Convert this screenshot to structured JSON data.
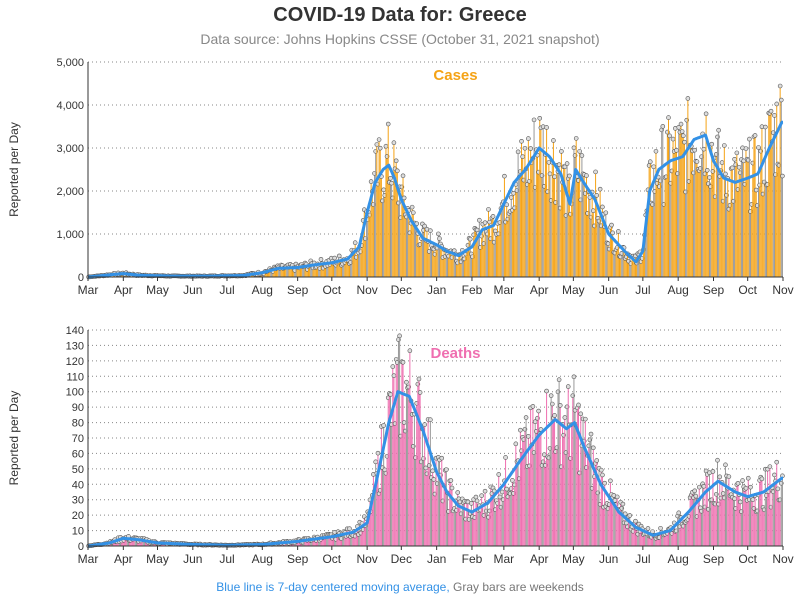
{
  "title": "COVID-19 Data for: Greece",
  "subtitle": "Data source: Johns Hopkins CSSE (October 31, 2021 snapshot)",
  "footer": {
    "blue_text": "Blue line is 7-day centered moving average,",
    "gray_text": "Gray bars are weekends"
  },
  "colors": {
    "cases_bar": "#f5a316",
    "deaths_bar": "#ef6fb0",
    "average_line": "#3391e6",
    "weekend_bar": "#999999"
  },
  "chart_data": [
    {
      "type": "bar",
      "title": "Cases",
      "ylabel": "Reported per Day",
      "ylim": [
        0,
        5000
      ],
      "yticks": [
        "0",
        "1,000",
        "2,000",
        "3,000",
        "4,000",
        "5,000"
      ],
      "ytick_values": [
        0,
        1000,
        2000,
        3000,
        4000,
        5000
      ],
      "x_range": [
        "2020-03-01",
        "2021-10-31"
      ],
      "xticks": [
        "Mar",
        "Apr",
        "May",
        "Jun",
        "Jul",
        "Aug",
        "Sep",
        "Oct",
        "Nov",
        "Dec",
        "Jan",
        "Feb",
        "Mar",
        "Apr",
        "May",
        "Jun",
        "Jul",
        "Aug",
        "Sep",
        "Oct",
        "Nov"
      ],
      "moving_average_anchors": [
        [
          "2020-03-01",
          0
        ],
        [
          "2020-03-20",
          50
        ],
        [
          "2020-04-01",
          80
        ],
        [
          "2020-04-15",
          40
        ],
        [
          "2020-05-15",
          20
        ],
        [
          "2020-06-15",
          20
        ],
        [
          "2020-07-15",
          35
        ],
        [
          "2020-08-01",
          100
        ],
        [
          "2020-08-15",
          200
        ],
        [
          "2020-09-01",
          220
        ],
        [
          "2020-09-15",
          280
        ],
        [
          "2020-10-01",
          330
        ],
        [
          "2020-10-15",
          420
        ],
        [
          "2020-10-25",
          700
        ],
        [
          "2020-11-01",
          1500
        ],
        [
          "2020-11-08",
          2200
        ],
        [
          "2020-11-15",
          2500
        ],
        [
          "2020-11-20",
          2600
        ],
        [
          "2020-11-25",
          2300
        ],
        [
          "2020-12-01",
          1800
        ],
        [
          "2020-12-10",
          1300
        ],
        [
          "2020-12-20",
          900
        ],
        [
          "2021-01-01",
          750
        ],
        [
          "2021-01-10",
          600
        ],
        [
          "2021-01-20",
          500
        ],
        [
          "2021-02-01",
          700
        ],
        [
          "2021-02-10",
          1100
        ],
        [
          "2021-02-20",
          1200
        ],
        [
          "2021-03-01",
          1700
        ],
        [
          "2021-03-10",
          2200
        ],
        [
          "2021-03-20",
          2500
        ],
        [
          "2021-04-01",
          3000
        ],
        [
          "2021-04-10",
          2800
        ],
        [
          "2021-04-20",
          2400
        ],
        [
          "2021-04-28",
          1700
        ],
        [
          "2021-05-03",
          2500
        ],
        [
          "2021-05-10",
          2200
        ],
        [
          "2021-05-20",
          1800
        ],
        [
          "2021-06-01",
          1000
        ],
        [
          "2021-06-15",
          600
        ],
        [
          "2021-06-25",
          350
        ],
        [
          "2021-07-01",
          600
        ],
        [
          "2021-07-07",
          2000
        ],
        [
          "2021-07-15",
          2500
        ],
        [
          "2021-07-25",
          2700
        ],
        [
          "2021-08-05",
          2800
        ],
        [
          "2021-08-15",
          3200
        ],
        [
          "2021-08-25",
          3300
        ],
        [
          "2021-09-01",
          2700
        ],
        [
          "2021-09-10",
          2300
        ],
        [
          "2021-09-20",
          2200
        ],
        [
          "2021-10-01",
          2300
        ],
        [
          "2021-10-10",
          2400
        ],
        [
          "2021-10-20",
          3000
        ],
        [
          "2021-10-31",
          3600
        ]
      ]
    },
    {
      "type": "bar",
      "title": "Deaths",
      "ylabel": "Reported per Day",
      "ylim": [
        0,
        140
      ],
      "yticks": [
        "0",
        "10",
        "20",
        "30",
        "40",
        "50",
        "60",
        "70",
        "80",
        "90",
        "100",
        "110",
        "120",
        "130",
        "140"
      ],
      "ytick_values": [
        0,
        10,
        20,
        30,
        40,
        50,
        60,
        70,
        80,
        90,
        100,
        110,
        120,
        130,
        140
      ],
      "x_range": [
        "2020-03-01",
        "2021-10-31"
      ],
      "xticks": [
        "Mar",
        "Apr",
        "May",
        "Jun",
        "Jul",
        "Aug",
        "Sep",
        "Oct",
        "Nov",
        "Dec",
        "Jan",
        "Feb",
        "Mar",
        "Apr",
        "May",
        "Jun",
        "Jul",
        "Aug",
        "Sep",
        "Oct",
        "Nov"
      ],
      "moving_average_anchors": [
        [
          "2020-03-01",
          0
        ],
        [
          "2020-03-20",
          2
        ],
        [
          "2020-04-01",
          5
        ],
        [
          "2020-04-15",
          4
        ],
        [
          "2020-05-01",
          2
        ],
        [
          "2020-06-01",
          1
        ],
        [
          "2020-07-01",
          0.5
        ],
        [
          "2020-08-01",
          1
        ],
        [
          "2020-09-01",
          3
        ],
        [
          "2020-10-01",
          6
        ],
        [
          "2020-10-20",
          9
        ],
        [
          "2020-11-01",
          15
        ],
        [
          "2020-11-10",
          45
        ],
        [
          "2020-11-20",
          80
        ],
        [
          "2020-11-28",
          100
        ],
        [
          "2020-12-08",
          97
        ],
        [
          "2020-12-20",
          75
        ],
        [
          "2021-01-01",
          48
        ],
        [
          "2021-01-10",
          35
        ],
        [
          "2021-01-20",
          26
        ],
        [
          "2021-02-01",
          22
        ],
        [
          "2021-02-15",
          28
        ],
        [
          "2021-03-01",
          40
        ],
        [
          "2021-03-15",
          55
        ],
        [
          "2021-04-01",
          72
        ],
        [
          "2021-04-15",
          82
        ],
        [
          "2021-04-25",
          76
        ],
        [
          "2021-05-02",
          80
        ],
        [
          "2021-05-10",
          65
        ],
        [
          "2021-05-25",
          40
        ],
        [
          "2021-06-10",
          22
        ],
        [
          "2021-06-25",
          12
        ],
        [
          "2021-07-10",
          7
        ],
        [
          "2021-07-25",
          10
        ],
        [
          "2021-08-10",
          22
        ],
        [
          "2021-08-25",
          35
        ],
        [
          "2021-09-05",
          42
        ],
        [
          "2021-09-20",
          35
        ],
        [
          "2021-10-01",
          32
        ],
        [
          "2021-10-15",
          35
        ],
        [
          "2021-10-31",
          44
        ]
      ]
    }
  ]
}
